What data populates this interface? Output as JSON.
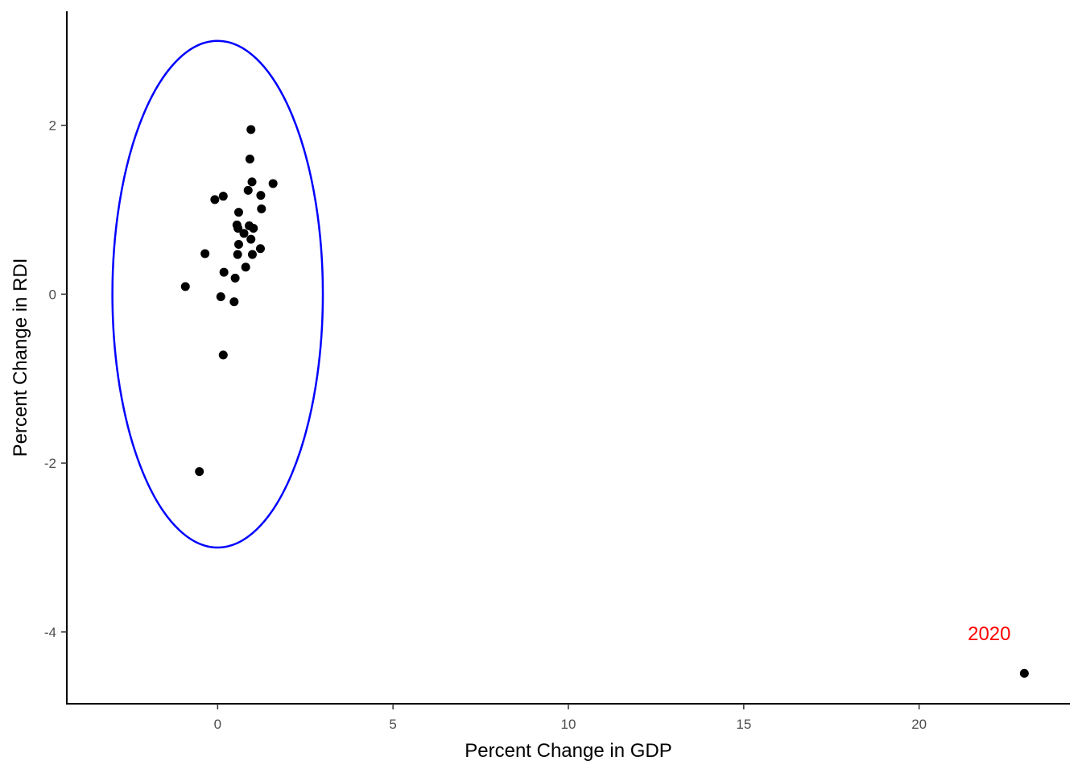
{
  "chart_data": {
    "type": "scatter",
    "title": "",
    "xlabel": "Percent Change in GDP",
    "ylabel": "Percent Change in RDI",
    "xlim": [
      -4.3,
      24.3
    ],
    "ylim": [
      -4.85,
      3.35
    ],
    "x_ticks": [
      0,
      5,
      10,
      15,
      20
    ],
    "y_ticks": [
      -4,
      -2,
      0,
      2
    ],
    "grid": false,
    "legend": "none",
    "point_color": "#000000",
    "points": [
      {
        "x": 0.95,
        "y": 1.95
      },
      {
        "x": 0.92,
        "y": 1.6
      },
      {
        "x": 0.98,
        "y": 1.33
      },
      {
        "x": 1.58,
        "y": 1.31
      },
      {
        "x": 0.87,
        "y": 1.23
      },
      {
        "x": 1.23,
        "y": 1.17
      },
      {
        "x": 0.16,
        "y": 1.16
      },
      {
        "x": -0.08,
        "y": 1.12
      },
      {
        "x": 1.25,
        "y": 1.01
      },
      {
        "x": 0.6,
        "y": 0.97
      },
      {
        "x": 0.55,
        "y": 0.82
      },
      {
        "x": 0.9,
        "y": 0.81
      },
      {
        "x": 0.58,
        "y": 0.78
      },
      {
        "x": 1.02,
        "y": 0.78
      },
      {
        "x": 0.75,
        "y": 0.72
      },
      {
        "x": 0.95,
        "y": 0.65
      },
      {
        "x": 0.6,
        "y": 0.59
      },
      {
        "x": 1.22,
        "y": 0.54
      },
      {
        "x": -0.36,
        "y": 0.48
      },
      {
        "x": 0.57,
        "y": 0.47
      },
      {
        "x": 0.99,
        "y": 0.47
      },
      {
        "x": 0.8,
        "y": 0.32
      },
      {
        "x": 0.18,
        "y": 0.26
      },
      {
        "x": 0.5,
        "y": 0.19
      },
      {
        "x": -0.92,
        "y": 0.09
      },
      {
        "x": 0.09,
        "y": -0.03
      },
      {
        "x": 0.47,
        "y": -0.09
      },
      {
        "x": 0.16,
        "y": -0.72
      },
      {
        "x": -0.52,
        "y": -2.1
      },
      {
        "x": 23.0,
        "y": -4.49
      }
    ],
    "ellipse": {
      "cx": 0,
      "cy": 0,
      "rx": 3,
      "ry": 3,
      "color": "#0000ff"
    },
    "annotations": [
      {
        "text": "2020",
        "x": 22.0,
        "y": -4.02,
        "color": "#ff0000"
      }
    ]
  }
}
